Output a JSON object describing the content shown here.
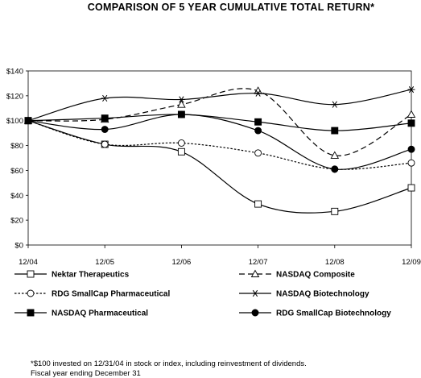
{
  "chart_data": {
    "type": "line",
    "title": "COMPARISON OF 5 YEAR CUMULATIVE TOTAL RETURN*",
    "xlabel": "",
    "ylabel": "",
    "categories": [
      "12/04",
      "12/05",
      "12/06",
      "12/07",
      "12/08",
      "12/09"
    ],
    "ylim": [
      0,
      140
    ],
    "yticks": [
      0,
      20,
      40,
      60,
      80,
      100,
      120,
      140
    ],
    "ytick_labels": [
      "$0",
      "$20",
      "$40",
      "$60",
      "$80",
      "$100",
      "$120",
      "$140"
    ],
    "grid": false,
    "legend_position": "bottom",
    "series": [
      {
        "name": "Nektar Therapeutics",
        "values": [
          100,
          81,
          75,
          33,
          27,
          46
        ],
        "line": "solid",
        "marker": "open-square",
        "color": "#000000"
      },
      {
        "name": "NASDAQ Composite",
        "values": [
          100,
          101,
          113,
          124,
          72,
          105
        ],
        "line": "dashed",
        "marker": "open-triangle",
        "color": "#000000"
      },
      {
        "name": "RDG SmallCap Pharmaceutical",
        "values": [
          100,
          81,
          82,
          74,
          61,
          66
        ],
        "line": "dotted",
        "marker": "open-circle",
        "color": "#000000"
      },
      {
        "name": "NASDAQ Biotechnology",
        "values": [
          100,
          118,
          117,
          122,
          113,
          125
        ],
        "line": "solid",
        "marker": "asterisk",
        "color": "#000000"
      },
      {
        "name": "NASDAQ Pharmaceutical",
        "values": [
          100,
          102,
          105,
          99,
          92,
          98
        ],
        "line": "solid",
        "marker": "filled-square",
        "color": "#000000"
      },
      {
        "name": "RDG SmallCap Biotechnology",
        "values": [
          100,
          93,
          105,
          92,
          61,
          77
        ],
        "line": "solid",
        "marker": "filled-circle",
        "color": "#000000"
      }
    ]
  },
  "footnote": {
    "line1": "*$100 invested on 12/31/04 in stock or index, including reinvestment of dividends.",
    "line2": "Fiscal year ending December 31"
  }
}
